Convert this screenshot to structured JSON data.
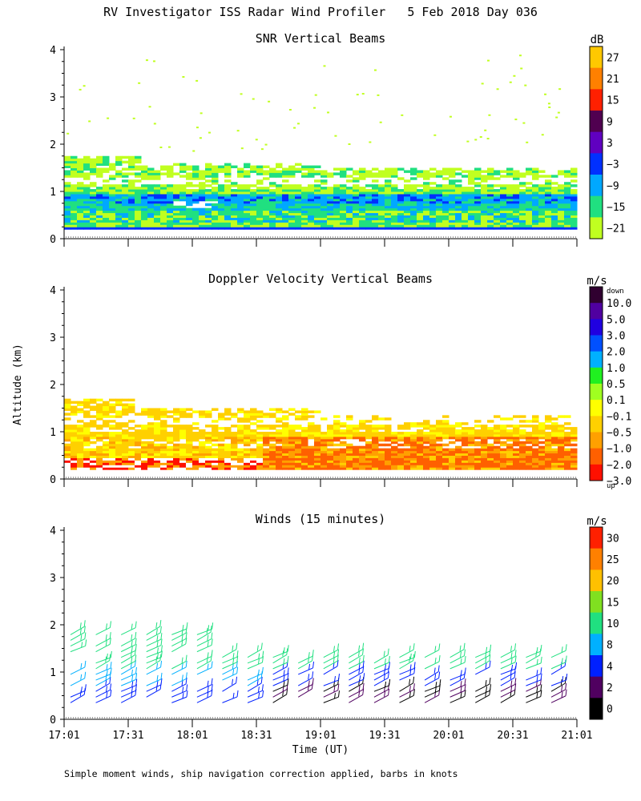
{
  "figure": {
    "title": "RV Investigator ISS Radar Wind Profiler   5 Feb 2018 Day 036",
    "footnote": "Simple moment winds, ship navigation correction applied, barbs in knots",
    "xlabel": "Time (UT)",
    "ylabel": "Altitude (km)"
  },
  "chart_data": [
    {
      "type": "heatmap",
      "title": "SNR Vertical Beams",
      "colorbar_unit": "dB",
      "colorbar_labels": [
        "27",
        "21",
        "15",
        "9",
        "3",
        "−3",
        "−9",
        "−15",
        "−21"
      ],
      "colorbar_colors": [
        "#ffc800",
        "#ff8000",
        "#ff2000",
        "#500050",
        "#6000c0",
        "#0030ff",
        "#00a8ff",
        "#20e080",
        "#c0ff20"
      ],
      "x_ticks": [
        "17:01",
        "17:31",
        "18:01",
        "18:31",
        "19:01",
        "19:31",
        "20:01",
        "20:31",
        "21:01"
      ],
      "y_ticks": [
        "0",
        "1",
        "2",
        "3",
        "4"
      ],
      "xlim": [
        "17:01",
        "21:01"
      ],
      "ylim": [
        0,
        4
      ]
    },
    {
      "type": "heatmap",
      "title": "Doppler Velocity Vertical Beams",
      "colorbar_unit": "m/s",
      "colorbar_top_note": "down",
      "colorbar_bottom_note": "up",
      "colorbar_labels": [
        "10.0",
        "5.0",
        "3.0",
        "2.0",
        "1.0",
        "0.5",
        "0.1",
        "−0.1",
        "−0.5",
        "−1.0",
        "−2.0",
        "−3.0"
      ],
      "colorbar_colors": [
        "#300030",
        "#5000a0",
        "#2000e0",
        "#0050ff",
        "#00b0ff",
        "#20f020",
        "#a0ff20",
        "#ffff00",
        "#ffd000",
        "#ffa000",
        "#ff6000",
        "#ff1000"
      ],
      "x_ticks": [
        "17:01",
        "17:31",
        "18:01",
        "18:31",
        "19:01",
        "19:31",
        "20:01",
        "20:31",
        "21:01"
      ],
      "y_ticks": [
        "0",
        "1",
        "2",
        "3",
        "4"
      ],
      "xlim": [
        "17:01",
        "21:01"
      ],
      "ylim": [
        0,
        4
      ]
    },
    {
      "type": "scatter",
      "title": "Winds (15 minutes)",
      "colorbar_unit": "m/s",
      "colorbar_labels": [
        "30",
        "25",
        "20",
        "15",
        "10",
        "8",
        "4",
        "2",
        "0"
      ],
      "colorbar_colors": [
        "#ff2000",
        "#ff8000",
        "#ffc000",
        "#80e020",
        "#20e080",
        "#00b0ff",
        "#0020ff",
        "#500060",
        "#000000"
      ],
      "x_ticks": [
        "17:01",
        "17:31",
        "18:01",
        "18:31",
        "19:01",
        "19:31",
        "20:01",
        "20:31",
        "21:01"
      ],
      "y_ticks": [
        "0",
        "1",
        "2",
        "3",
        "4"
      ],
      "xlim": [
        "17:01",
        "21:01"
      ],
      "ylim": [
        0,
        4
      ]
    }
  ]
}
